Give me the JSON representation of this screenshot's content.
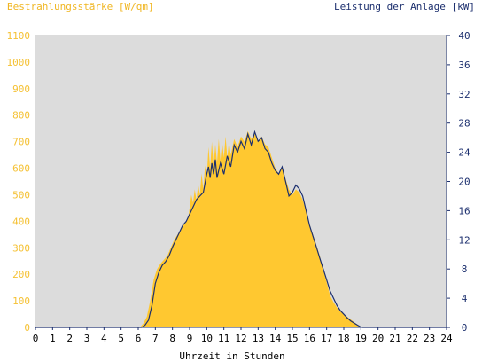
{
  "colors": {
    "plot_background": "#dcdcdc",
    "irradiance_fill": "#ffc830",
    "power_line": "#1c2f6e",
    "left_axis_text": "#f5c133",
    "right_axis_text": "#1c2f6e",
    "axis_line": "#1c2f6e"
  },
  "chart_data": {
    "type": "area",
    "title_left": "Bestrahlungsstärke [W/qm]",
    "title_right": "Leistung der Anlage [kW]",
    "xlabel": "Uhrzeit in Stunden",
    "xlim": [
      0,
      24
    ],
    "x_ticks": [
      "0",
      "1",
      "2",
      "3",
      "4",
      "5",
      "6",
      "7",
      "8",
      "9",
      "10",
      "11",
      "12",
      "13",
      "14",
      "15",
      "16",
      "17",
      "18",
      "19",
      "20",
      "21",
      "22",
      "23",
      "24"
    ],
    "y_left": {
      "label": "Bestrahlungsstärke [W/qm]",
      "lim": [
        0,
        1100
      ],
      "ticks": [
        "0",
        "100",
        "200",
        "300",
        "400",
        "500",
        "600",
        "700",
        "800",
        "900",
        "1000",
        "1100"
      ]
    },
    "y_right": {
      "label": "Leistung der Anlage [kW]",
      "lim": [
        0,
        40
      ],
      "ticks": [
        "0",
        "4",
        "8",
        "12",
        "16",
        "20",
        "24",
        "28",
        "32",
        "36",
        "40"
      ]
    },
    "grid": false,
    "series": [
      {
        "name": "Bestrahlungsstärke",
        "axis": "left",
        "kind": "area",
        "points": [
          [
            0,
            0
          ],
          [
            6.1,
            0
          ],
          [
            6.3,
            15
          ],
          [
            6.5,
            40
          ],
          [
            6.7,
            100
          ],
          [
            6.9,
            180
          ],
          [
            7.1,
            220
          ],
          [
            7.3,
            240
          ],
          [
            7.5,
            255
          ],
          [
            7.7,
            270
          ],
          [
            7.9,
            300
          ],
          [
            8.1,
            330
          ],
          [
            8.3,
            350
          ],
          [
            8.5,
            370
          ],
          [
            8.7,
            390
          ],
          [
            8.9,
            410
          ],
          [
            9.0,
            450
          ],
          [
            9.1,
            500
          ],
          [
            9.2,
            470
          ],
          [
            9.3,
            520
          ],
          [
            9.4,
            480
          ],
          [
            9.5,
            540
          ],
          [
            9.6,
            500
          ],
          [
            9.7,
            580
          ],
          [
            9.8,
            520
          ],
          [
            9.9,
            610
          ],
          [
            10.0,
            560
          ],
          [
            10.1,
            680
          ],
          [
            10.2,
            600
          ],
          [
            10.3,
            700
          ],
          [
            10.4,
            610
          ],
          [
            10.5,
            690
          ],
          [
            10.6,
            620
          ],
          [
            10.7,
            710
          ],
          [
            10.8,
            630
          ],
          [
            10.9,
            700
          ],
          [
            11.0,
            640
          ],
          [
            11.1,
            720
          ],
          [
            11.2,
            640
          ],
          [
            11.3,
            700
          ],
          [
            11.4,
            650
          ],
          [
            11.6,
            710
          ],
          [
            11.8,
            680
          ],
          [
            12.0,
            720
          ],
          [
            12.2,
            700
          ],
          [
            12.4,
            740
          ],
          [
            12.6,
            710
          ],
          [
            12.8,
            730
          ],
          [
            13.0,
            700
          ],
          [
            13.2,
            720
          ],
          [
            13.4,
            690
          ],
          [
            13.6,
            680
          ],
          [
            13.8,
            640
          ],
          [
            14.0,
            600
          ],
          [
            14.2,
            580
          ],
          [
            14.4,
            600
          ],
          [
            14.6,
            560
          ],
          [
            14.8,
            520
          ],
          [
            15.0,
            500
          ],
          [
            15.2,
            520
          ],
          [
            15.4,
            510
          ],
          [
            15.6,
            480
          ],
          [
            15.8,
            440
          ],
          [
            16.0,
            390
          ],
          [
            16.2,
            350
          ],
          [
            16.4,
            310
          ],
          [
            16.6,
            270
          ],
          [
            16.8,
            220
          ],
          [
            17.0,
            170
          ],
          [
            17.2,
            120
          ],
          [
            17.4,
            95
          ],
          [
            17.6,
            75
          ],
          [
            17.8,
            60
          ],
          [
            18.0,
            50
          ],
          [
            18.2,
            40
          ],
          [
            18.4,
            30
          ],
          [
            18.6,
            20
          ],
          [
            18.8,
            10
          ],
          [
            19.0,
            3
          ],
          [
            19.1,
            0
          ],
          [
            24,
            0
          ]
        ]
      },
      {
        "name": "Leistung der Anlage",
        "axis": "right",
        "kind": "line",
        "points": [
          [
            0,
            0
          ],
          [
            6.2,
            0
          ],
          [
            6.4,
            0.3
          ],
          [
            6.6,
            1
          ],
          [
            6.8,
            3
          ],
          [
            7.0,
            6
          ],
          [
            7.2,
            7.5
          ],
          [
            7.4,
            8.5
          ],
          [
            7.6,
            9
          ],
          [
            7.8,
            9.8
          ],
          [
            8.0,
            11
          ],
          [
            8.2,
            12
          ],
          [
            8.4,
            13
          ],
          [
            8.6,
            14
          ],
          [
            8.8,
            14.5
          ],
          [
            9.0,
            15.5
          ],
          [
            9.2,
            16.5
          ],
          [
            9.4,
            17.5
          ],
          [
            9.6,
            18
          ],
          [
            9.8,
            18.5
          ],
          [
            10.0,
            21
          ],
          [
            10.1,
            22
          ],
          [
            10.2,
            20.5
          ],
          [
            10.3,
            22.5
          ],
          [
            10.4,
            21
          ],
          [
            10.5,
            23
          ],
          [
            10.6,
            20.5
          ],
          [
            10.8,
            22.5
          ],
          [
            11.0,
            21
          ],
          [
            11.2,
            23.5
          ],
          [
            11.4,
            22
          ],
          [
            11.6,
            25
          ],
          [
            11.8,
            24
          ],
          [
            12.0,
            25.5
          ],
          [
            12.2,
            24.5
          ],
          [
            12.4,
            26.5
          ],
          [
            12.6,
            25
          ],
          [
            12.8,
            26.8
          ],
          [
            13.0,
            25.5
          ],
          [
            13.2,
            26
          ],
          [
            13.4,
            24.5
          ],
          [
            13.6,
            24
          ],
          [
            13.8,
            22.5
          ],
          [
            14.0,
            21.5
          ],
          [
            14.2,
            21
          ],
          [
            14.4,
            22
          ],
          [
            14.6,
            20
          ],
          [
            14.8,
            18
          ],
          [
            15.0,
            18.5
          ],
          [
            15.2,
            19.5
          ],
          [
            15.4,
            19
          ],
          [
            15.6,
            18
          ],
          [
            15.8,
            16
          ],
          [
            16.0,
            14
          ],
          [
            16.2,
            12.5
          ],
          [
            16.4,
            11
          ],
          [
            16.6,
            9.5
          ],
          [
            16.8,
            8
          ],
          [
            17.0,
            6.5
          ],
          [
            17.2,
            5
          ],
          [
            17.4,
            4
          ],
          [
            17.6,
            3
          ],
          [
            17.8,
            2.3
          ],
          [
            18.0,
            1.8
          ],
          [
            18.2,
            1.3
          ],
          [
            18.4,
            0.9
          ],
          [
            18.6,
            0.6
          ],
          [
            18.8,
            0.3
          ],
          [
            19.0,
            0.05
          ],
          [
            19.1,
            0
          ],
          [
            24,
            0
          ]
        ]
      }
    ]
  }
}
